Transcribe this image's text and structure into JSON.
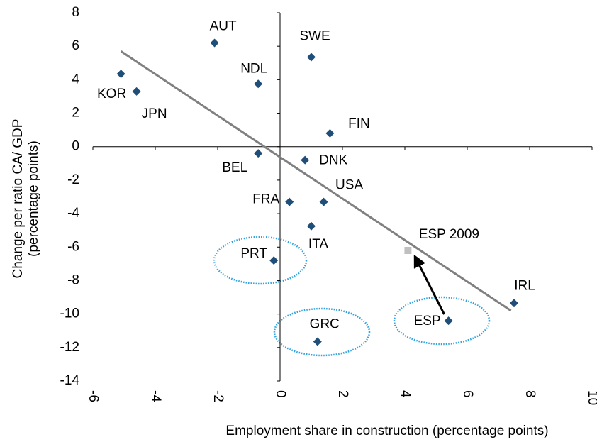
{
  "chart_data": {
    "type": "scatter",
    "x_label": "Employment share in construction (percentage points)",
    "y_label": [
      "Change per ratio CA/ GDP",
      "(percentage points)"
    ],
    "xlim": [
      -6,
      10
    ],
    "xticks": [
      -6,
      -4,
      -2,
      0,
      2,
      4,
      6,
      8,
      10
    ],
    "ylim": [
      -14,
      8
    ],
    "yticks": [
      -14,
      -12,
      -10,
      -8,
      -6,
      -4,
      -2,
      0,
      2,
      4,
      6,
      8
    ],
    "series": [
      {
        "color": "#1f4e79",
        "marker": "diamond",
        "labels": [
          "KOR",
          "JPN",
          "AUT",
          "NDL",
          "SWE",
          "FIN",
          "BEL",
          "DNK",
          "USA",
          "FRA",
          "ITA",
          "PRT",
          "GRC",
          "ESP",
          "IRL"
        ],
        "x": [
          -5.1,
          -4.6,
          -2.1,
          -0.7,
          1.0,
          1.6,
          -0.7,
          0.8,
          1.4,
          0.3,
          1.0,
          -0.2,
          1.2,
          5.4,
          7.5
        ],
        "values": [
          4.35,
          3.3,
          6.2,
          3.75,
          5.35,
          0.8,
          -0.4,
          -0.8,
          -3.3,
          -3.3,
          -4.75,
          -6.8,
          -11.65,
          -10.4,
          -9.35
        ]
      },
      {
        "color": "#c0c0c0",
        "marker": "square",
        "labels": [
          "ESP 2009"
        ],
        "x": [
          4.1
        ],
        "values": [
          -6.2
        ]
      }
    ],
    "trend": {
      "color": "#808080",
      "x": [
        -5.1,
        7.4
      ],
      "values": [
        5.7,
        -9.8
      ]
    }
  }
}
